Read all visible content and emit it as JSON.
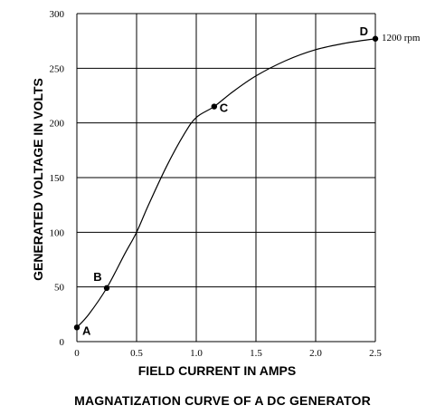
{
  "chart_data": {
    "type": "line",
    "title": "MAGNATIZATION CURVE OF A DC GENERATOR",
    "xlabel": "FIELD CURRENT IN AMPS",
    "ylabel": "GENERATED VOLTAGE IN VOLTS",
    "xlim": [
      0,
      2.5
    ],
    "ylim": [
      0,
      300
    ],
    "xticks": [
      "0",
      "0.5",
      "1.0",
      "1.5",
      "2.0",
      "2.5"
    ],
    "yticks": [
      "0",
      "50",
      "100",
      "150",
      "200",
      "250",
      "300"
    ],
    "grid": true,
    "series": [
      {
        "name": "",
        "x": [
          0,
          0.1,
          0.25,
          0.4,
          0.5,
          0.6,
          0.75,
          0.9,
          1.0,
          1.15,
          1.3,
          1.5,
          1.75,
          2.0,
          2.25,
          2.5
        ],
        "y": [
          13,
          25,
          49,
          80,
          100,
          125,
          160,
          190,
          205,
          215,
          228,
          243,
          257,
          267,
          273,
          277
        ]
      }
    ],
    "marked_points": [
      {
        "label": "A",
        "x": 0,
        "y": 13
      },
      {
        "label": "B",
        "x": 0.25,
        "y": 49
      },
      {
        "label": "C",
        "x": 1.15,
        "y": 215
      },
      {
        "label": "D",
        "x": 2.5,
        "y": 277
      }
    ],
    "annotation": "1200 rpm"
  }
}
